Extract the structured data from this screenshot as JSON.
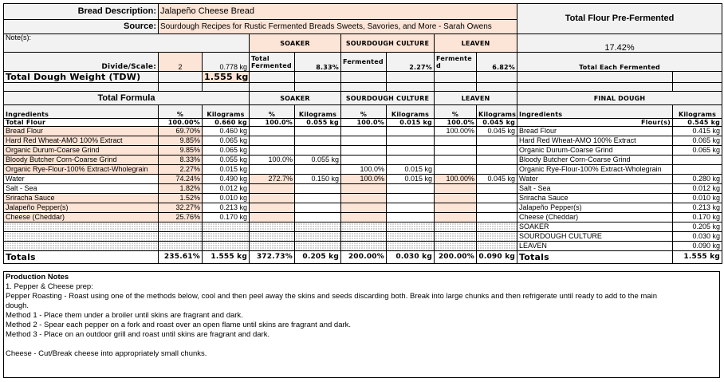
{
  "header": {
    "bread_description_label": "Bread Description:",
    "bread_description": "Jalapeño Cheese Bread",
    "source_label": "Source:",
    "source": "Sourdough Recipes for Rustic Fermented Breads Sweets, Savories, and More - Sarah Owens",
    "total_flour_prefermented_label": "Total Flour Pre-Fermented",
    "total_flour_prefermented": "17.42%",
    "notes_label": "Note(s):",
    "divide_scale_label": "Divide/Scale:",
    "divide_scale": "2",
    "divide_kg": "0.778 kg",
    "tdw_label": "Total Dough Weight (TDW)",
    "tdw": "1.555 kg",
    "total_each_fermented_label": "Total Each Fermented"
  },
  "preferments": {
    "soaker": "SOAKER",
    "sourdough": "SOURDOUGH CULTURE",
    "leaven": "LEAVEN",
    "soaker_label": "Total Fermented",
    "soaker_pct": "8.33%",
    "sourdough_label": "Fermented",
    "sourdough_pct": "2.27%",
    "leaven_label": "Fermented",
    "leaven_pct": "6.82%"
  },
  "formula": {
    "title": "Total Formula",
    "final_dough": "FINAL DOUGH",
    "col_ingredients": "Ingredients",
    "col_pct": "%",
    "col_kg": "Kilograms",
    "total_flour": [
      "Total Flour",
      "100.00%",
      "0.660 kg",
      "100.0%",
      "0.055 kg",
      "100.0%",
      "0.015 kg",
      "100.0%",
      "0.045 kg",
      "Flour(s)",
      "0.545 kg"
    ],
    "rows": [
      [
        "Bread Flour",
        "69.70%",
        "0.460 kg",
        "",
        "",
        "",
        "",
        "100.00%",
        "0.045 kg",
        "Bread Flour",
        "0.415 kg"
      ],
      [
        "Hard Red Wheat-AMO 100% Extract",
        "9.85%",
        "0.065 kg",
        "",
        "",
        "",
        "",
        "",
        "",
        "Hard Red Wheat-AMO 100% Extract",
        "0.065 kg"
      ],
      [
        "Organic Durum-Coarse Grind",
        "9.85%",
        "0.065 kg",
        "",
        "",
        "",
        "",
        "",
        "",
        "Organic Durum-Coarse Grind",
        "0.065 kg"
      ],
      [
        "Bloody Butcher Corn-Coarse Grind",
        "8.33%",
        "0.055 kg",
        "100.0%",
        "0.055 kg",
        "",
        "",
        "",
        "",
        "Bloody Butcher Corn-Coarse Grind",
        ""
      ],
      [
        "Organic Rye-Flour-100% Extract-Wholegrain",
        "2.27%",
        "0.015 kg",
        "",
        "",
        "100.0%",
        "0.015 kg",
        "",
        "",
        "Organic Rye-Flour-100% Extract-Wholegrain",
        ""
      ],
      [
        "Water",
        "74.24%",
        "0.490 kg",
        "272.7%",
        "0.150 kg",
        "100.0%",
        "0.015 kg",
        "100.00%",
        "0.045 kg",
        "Water",
        "0.280 kg"
      ],
      [
        "Salt - Sea",
        "1.82%",
        "0.012 kg",
        "",
        "",
        "",
        "",
        "",
        "",
        "Salt - Sea",
        "0.012 kg"
      ],
      [
        "Sriracha Sauce",
        "1.52%",
        "0.010 kg",
        "",
        "",
        "",
        "",
        "",
        "",
        "Sriracha Sauce",
        "0.010 kg"
      ],
      [
        "Jalapeño Pepper(s)",
        "32.27%",
        "0.213 kg",
        "",
        "",
        "",
        "",
        "",
        "",
        "Jalapeño Pepper(s)",
        "0.213 kg"
      ],
      [
        "Cheese (Cheddar)",
        "25.76%",
        "0.170 kg",
        "",
        "",
        "",
        "",
        "",
        "",
        "Cheese (Cheddar)",
        "0.170 kg"
      ]
    ],
    "preferment_rows": [
      [
        "SOAKER",
        "0.205 kg"
      ],
      [
        "SOURDOUGH CULTURE",
        "0.030 kg"
      ],
      [
        "LEAVEN",
        "0.090 kg"
      ]
    ],
    "totals": [
      "Totals",
      "235.61%",
      "1.555 kg",
      "372.73%",
      "0.205 kg",
      "200.00%",
      "0.030 kg",
      "200.00%",
      "0.090 kg",
      "Totals",
      "1.555 kg"
    ]
  },
  "notes": {
    "title": "Production Notes",
    "lines": [
      "1. Pepper & Cheese prep:",
      "Pepper Roasting - Roast using one of the methods below,  cool and then peel away the skins and seeds discarding both.  Break into large chunks and then refrigerate until ready to add to the main",
      "dough.",
      "Method 1 - Place them under a broiler until skins are fragrant and dark.",
      "Method 2 - Spear each pepper on a fork and roast over an open flame until skins are fragrant and dark.",
      "Method 3 - Place on an outdoor grill and roast until skins are fragrant and dark.",
      "",
      "Cheese - Cut/Break cheese into appropriately small chunks."
    ]
  },
  "colors": {
    "input_fill": "#fce4d6",
    "header_fill": "#f2f2f2"
  }
}
